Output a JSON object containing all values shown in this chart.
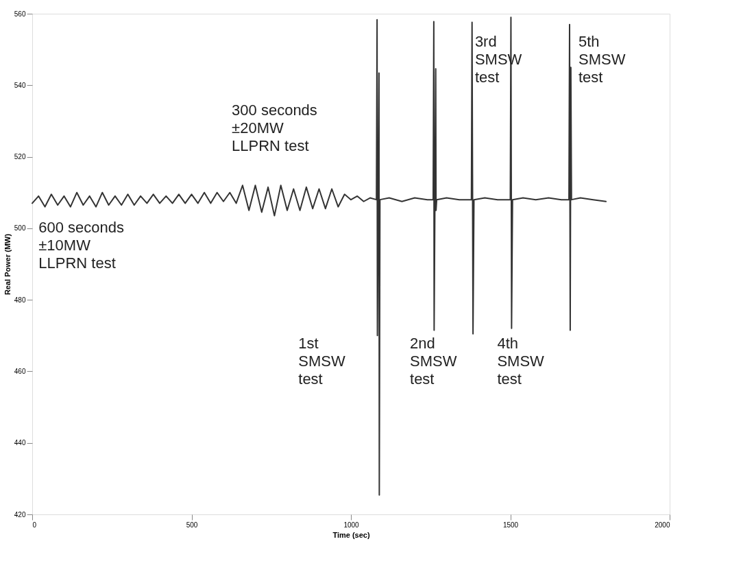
{
  "chart_data": {
    "type": "line",
    "xlabel": "Time (sec)",
    "ylabel": "Real Power (MW)",
    "xlim": [
      0,
      2000
    ],
    "ylim": [
      420,
      560
    ],
    "xticks": [
      0,
      500,
      1000,
      1500,
      2000
    ],
    "yticks": [
      420,
      440,
      460,
      480,
      500,
      520,
      540,
      560
    ],
    "grid": false,
    "line_style": "solid",
    "marker": "none",
    "series": [
      {
        "color": "#333333",
        "x": [
          0,
          20,
          40,
          60,
          80,
          100,
          120,
          140,
          160,
          180,
          200,
          220,
          240,
          260,
          280,
          300,
          320,
          340,
          360,
          380,
          400,
          420,
          440,
          460,
          480,
          500,
          520,
          540,
          560,
          580,
          600,
          620,
          640,
          660,
          680,
          700,
          720,
          740,
          760,
          780,
          800,
          820,
          840,
          860,
          880,
          900,
          920,
          940,
          960,
          980,
          1000,
          1020,
          1040,
          1060,
          1080,
          1082,
          1083,
          1088,
          1089,
          1091,
          1120,
          1160,
          1200,
          1240,
          1258,
          1260,
          1261,
          1266,
          1267,
          1269,
          1300,
          1340,
          1378,
          1380,
          1383,
          1386,
          1420,
          1460,
          1500,
          1502,
          1504,
          1507,
          1540,
          1580,
          1620,
          1660,
          1684,
          1686,
          1688,
          1690,
          1692,
          1720,
          1760,
          1800
        ],
        "values": [
          507,
          509,
          506,
          509.5,
          506.5,
          509,
          506,
          510,
          506.5,
          509,
          506,
          510,
          506.5,
          509,
          506.5,
          509.5,
          506.5,
          509,
          507,
          509.5,
          507,
          509,
          507,
          509.5,
          507,
          509.5,
          507,
          510,
          507,
          510,
          507.5,
          510,
          507,
          512,
          505,
          512,
          504.5,
          511.5,
          503.5,
          512,
          505,
          511,
          505,
          511.5,
          505.5,
          511,
          505.5,
          511,
          506,
          509.5,
          508,
          509,
          507.5,
          508.5,
          508,
          558.3,
          470,
          543.4,
          425.4,
          508,
          508.5,
          507.5,
          508.5,
          508,
          508,
          557.8,
          471.5,
          544.6,
          505,
          508,
          508.5,
          508,
          508,
          557.6,
          470.5,
          508,
          508.5,
          508,
          508,
          559,
          472,
          508,
          508.5,
          508,
          508.5,
          508,
          508,
          557,
          471.5,
          545,
          508,
          508.5,
          508,
          507.5
        ]
      }
    ],
    "annotations": [
      "600 seconds\n±10MW\nLLPRN test",
      "300 seconds\n±20MW\nLLPRN test",
      "1st\nSMSW\ntest",
      "2nd\nSMSW\ntest",
      "3rd\nSMSW\ntest",
      "4th\nSMSW\ntest",
      "5th\nSMSW\ntest"
    ]
  }
}
